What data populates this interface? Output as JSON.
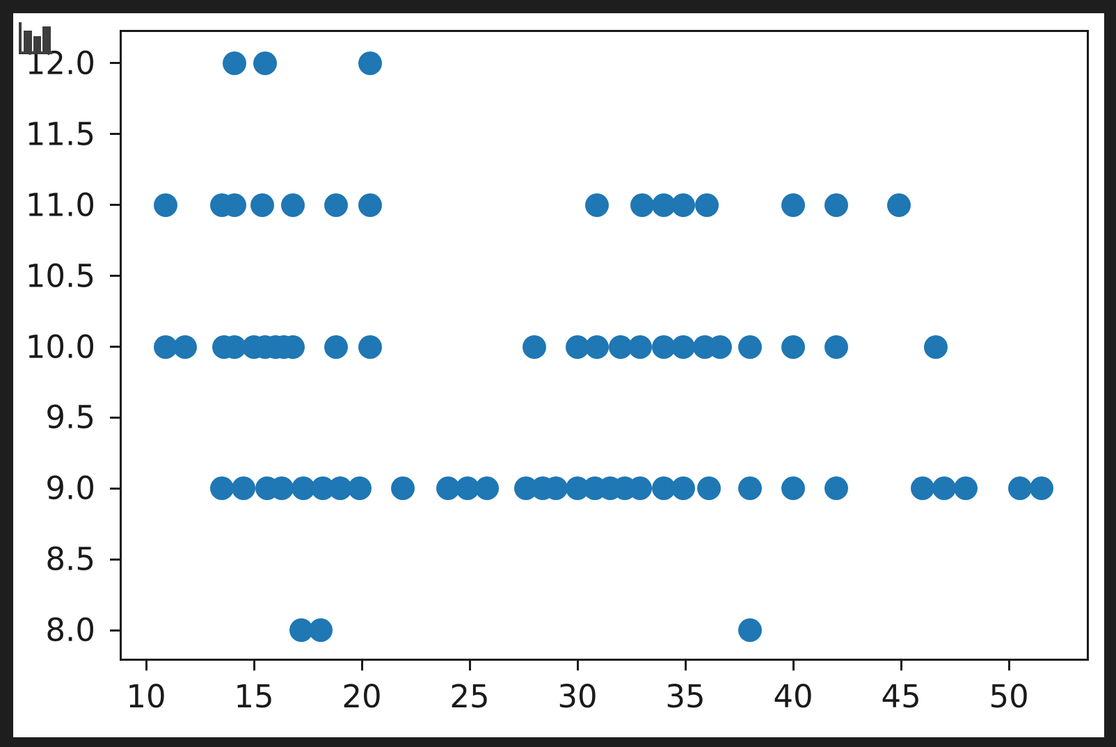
{
  "window": {
    "background_color": "#1e1e1e",
    "figure_background_color": "#ffffff",
    "axis_color": "#1a1a1a"
  },
  "icon": {
    "name": "bar-chart-icon",
    "color": "#3d3d3d"
  },
  "chart_data": {
    "type": "scatter",
    "title": "",
    "xlabel": "",
    "ylabel": "",
    "legend": null,
    "grid": false,
    "marker_color": "#1f77b4",
    "xlim": [
      8.87,
      53.61
    ],
    "ylim": [
      7.8,
      12.22
    ],
    "x_ticks": {
      "values": [
        10,
        15,
        20,
        25,
        30,
        35,
        40,
        45,
        50
      ],
      "labels": [
        "10",
        "15",
        "20",
        "25",
        "30",
        "35",
        "40",
        "45",
        "50"
      ]
    },
    "y_ticks": {
      "values": [
        12.0,
        11.5,
        11.0,
        10.5,
        10.0,
        9.5,
        9.0,
        8.5,
        8.0
      ],
      "labels": [
        "12.0",
        "11.5",
        "11.0",
        "10.5",
        "10.0",
        "9.5",
        "9.0",
        "8.5",
        "8.0"
      ]
    },
    "points": [
      {
        "x": 14.1,
        "y": 12
      },
      {
        "x": 15.5,
        "y": 12
      },
      {
        "x": 20.4,
        "y": 12
      },
      {
        "x": 10.9,
        "y": 11
      },
      {
        "x": 13.5,
        "y": 11
      },
      {
        "x": 14.1,
        "y": 11
      },
      {
        "x": 15.4,
        "y": 11
      },
      {
        "x": 16.8,
        "y": 11
      },
      {
        "x": 18.8,
        "y": 11
      },
      {
        "x": 20.4,
        "y": 11
      },
      {
        "x": 30.9,
        "y": 11
      },
      {
        "x": 33.0,
        "y": 11
      },
      {
        "x": 34.0,
        "y": 11
      },
      {
        "x": 34.9,
        "y": 11
      },
      {
        "x": 36.0,
        "y": 11
      },
      {
        "x": 40.0,
        "y": 11
      },
      {
        "x": 42.0,
        "y": 11
      },
      {
        "x": 44.9,
        "y": 11
      },
      {
        "x": 10.9,
        "y": 10
      },
      {
        "x": 11.8,
        "y": 10
      },
      {
        "x": 13.6,
        "y": 10
      },
      {
        "x": 14.1,
        "y": 10
      },
      {
        "x": 15.0,
        "y": 10
      },
      {
        "x": 15.5,
        "y": 10
      },
      {
        "x": 16.0,
        "y": 10
      },
      {
        "x": 16.4,
        "y": 10
      },
      {
        "x": 16.8,
        "y": 10
      },
      {
        "x": 18.8,
        "y": 10
      },
      {
        "x": 20.4,
        "y": 10
      },
      {
        "x": 28.0,
        "y": 10
      },
      {
        "x": 30.0,
        "y": 10
      },
      {
        "x": 30.9,
        "y": 10
      },
      {
        "x": 32.0,
        "y": 10
      },
      {
        "x": 32.9,
        "y": 10
      },
      {
        "x": 34.0,
        "y": 10
      },
      {
        "x": 34.9,
        "y": 10
      },
      {
        "x": 35.9,
        "y": 10
      },
      {
        "x": 36.6,
        "y": 10
      },
      {
        "x": 38.0,
        "y": 10
      },
      {
        "x": 40.0,
        "y": 10
      },
      {
        "x": 42.0,
        "y": 10
      },
      {
        "x": 46.6,
        "y": 10
      },
      {
        "x": 13.5,
        "y": 9
      },
      {
        "x": 14.5,
        "y": 9
      },
      {
        "x": 15.6,
        "y": 9
      },
      {
        "x": 16.3,
        "y": 9
      },
      {
        "x": 17.3,
        "y": 9
      },
      {
        "x": 18.2,
        "y": 9
      },
      {
        "x": 19.0,
        "y": 9
      },
      {
        "x": 19.9,
        "y": 9
      },
      {
        "x": 21.9,
        "y": 9
      },
      {
        "x": 24.0,
        "y": 9
      },
      {
        "x": 24.9,
        "y": 9
      },
      {
        "x": 25.8,
        "y": 9
      },
      {
        "x": 27.6,
        "y": 9
      },
      {
        "x": 28.4,
        "y": 9
      },
      {
        "x": 29.0,
        "y": 9
      },
      {
        "x": 30.0,
        "y": 9
      },
      {
        "x": 30.8,
        "y": 9
      },
      {
        "x": 31.5,
        "y": 9
      },
      {
        "x": 32.2,
        "y": 9
      },
      {
        "x": 32.9,
        "y": 9
      },
      {
        "x": 34.0,
        "y": 9
      },
      {
        "x": 34.9,
        "y": 9
      },
      {
        "x": 36.1,
        "y": 9
      },
      {
        "x": 38.0,
        "y": 9
      },
      {
        "x": 40.0,
        "y": 9
      },
      {
        "x": 42.0,
        "y": 9
      },
      {
        "x": 46.0,
        "y": 9
      },
      {
        "x": 47.0,
        "y": 9
      },
      {
        "x": 48.0,
        "y": 9
      },
      {
        "x": 50.5,
        "y": 9
      },
      {
        "x": 51.5,
        "y": 9
      },
      {
        "x": 17.2,
        "y": 8
      },
      {
        "x": 18.1,
        "y": 8
      },
      {
        "x": 38.0,
        "y": 8
      }
    ]
  }
}
